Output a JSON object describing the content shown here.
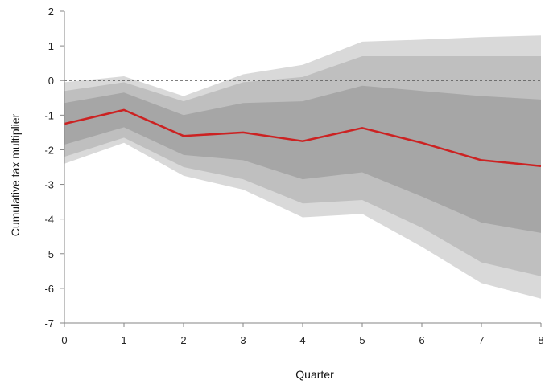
{
  "chart_data": {
    "type": "area",
    "title": "",
    "xlabel": "Quarter",
    "ylabel": "Cumulative tax multiplier",
    "xlim": [
      0,
      8
    ],
    "ylim": [
      -7,
      2
    ],
    "x": [
      0,
      1,
      2,
      3,
      4,
      5,
      6,
      7,
      8
    ],
    "x_tick_labels": [
      "0",
      "1",
      "2",
      "3",
      "4",
      "5",
      "6",
      "7",
      "8"
    ],
    "y_tick_labels": [
      "2",
      "1",
      "0",
      "-1",
      "-2",
      "-3",
      "-4",
      "-5",
      "-6",
      "-7"
    ],
    "y_ticks": [
      2,
      1,
      0,
      -1,
      -2,
      -3,
      -4,
      -5,
      -6,
      -7
    ],
    "grid": false,
    "reference_line": {
      "y": 0,
      "style": "dashed"
    },
    "bands": [
      {
        "color": "#d9d9d9",
        "lower": [
          -2.4,
          -1.8,
          -2.75,
          -3.15,
          -3.95,
          -3.85,
          -4.8,
          -5.85,
          -6.3
        ],
        "upper": [
          -0.05,
          0.12,
          -0.45,
          0.18,
          0.45,
          1.12,
          1.18,
          1.25,
          1.3
        ]
      },
      {
        "color": "#bfbfbf",
        "lower": [
          -2.2,
          -1.65,
          -2.5,
          -2.85,
          -3.55,
          -3.45,
          -4.25,
          -5.25,
          -5.65
        ],
        "upper": [
          -0.3,
          -0.05,
          -0.6,
          -0.05,
          0.1,
          0.7,
          0.7,
          0.7,
          0.7
        ]
      },
      {
        "color": "#a6a6a6",
        "lower": [
          -1.85,
          -1.35,
          -2.15,
          -2.3,
          -2.85,
          -2.65,
          -3.35,
          -4.1,
          -4.4
        ],
        "upper": [
          -0.65,
          -0.35,
          -1.0,
          -0.65,
          -0.6,
          -0.15,
          -0.3,
          -0.45,
          -0.55
        ]
      }
    ],
    "series": [
      {
        "values": [
          -1.25,
          -0.85,
          -1.6,
          -1.5,
          -1.75,
          -1.37,
          -1.8,
          -2.3,
          -2.47
        ],
        "color": "#cc2222"
      }
    ]
  }
}
